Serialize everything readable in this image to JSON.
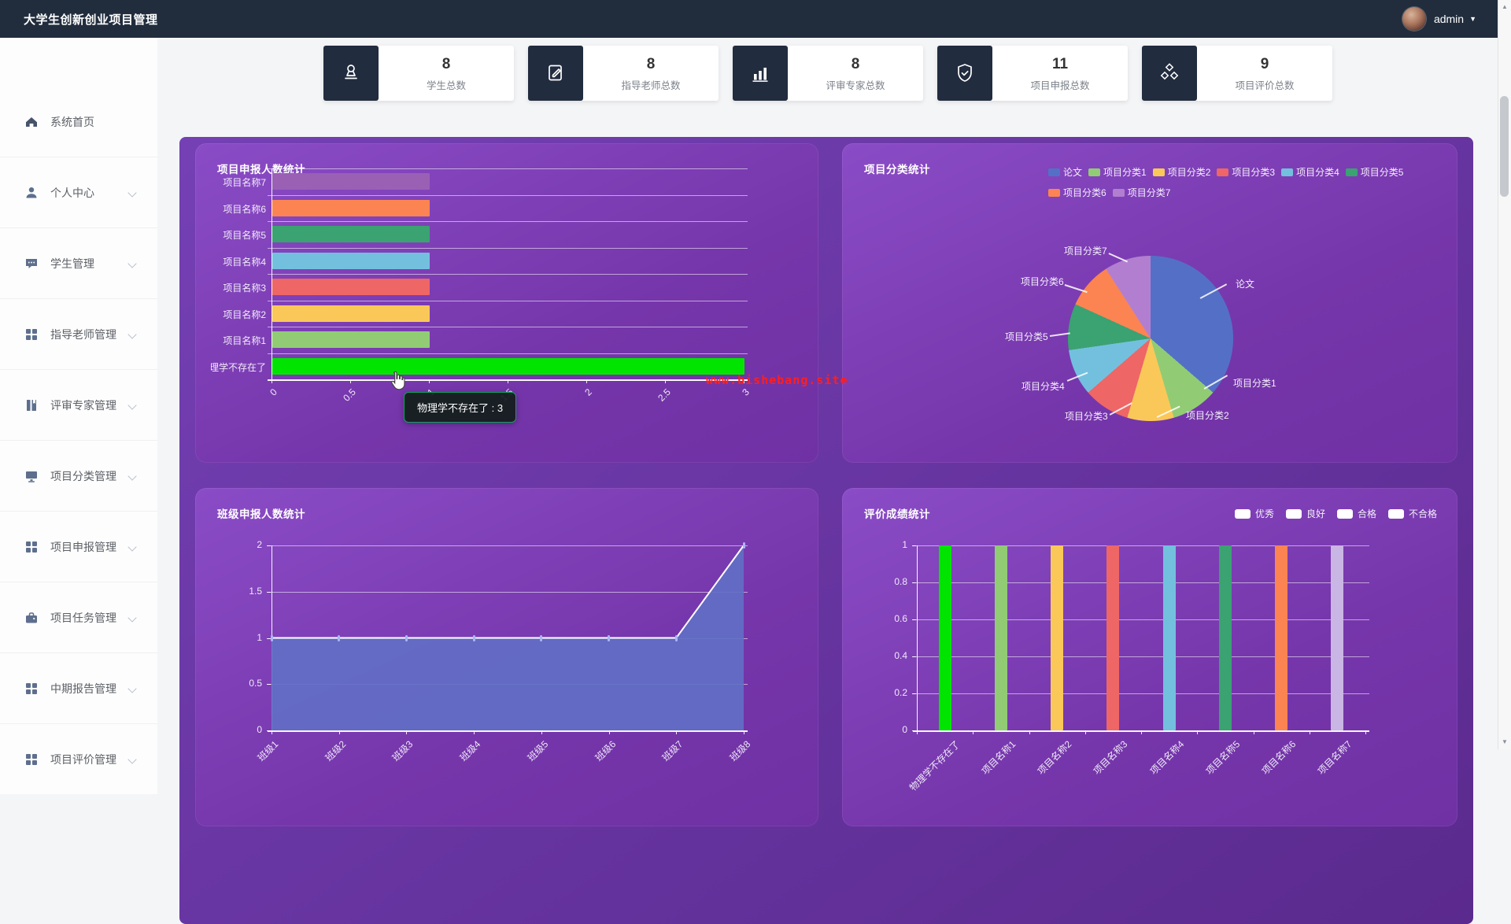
{
  "navbar": {
    "title": "大学生创新创业项目管理",
    "user": "admin"
  },
  "sidebar": {
    "items": [
      {
        "label": "系统首页",
        "icon": "home-icon",
        "expandable": false
      },
      {
        "label": "个人中心",
        "icon": "user-icon",
        "expandable": true
      },
      {
        "label": "学生管理",
        "icon": "comment-icon",
        "expandable": true
      },
      {
        "label": "指导老师管理",
        "icon": "grid-icon",
        "expandable": true
      },
      {
        "label": "评审专家管理",
        "icon": "book-icon",
        "expandable": true
      },
      {
        "label": "项目分类管理",
        "icon": "monitor-icon",
        "expandable": true
      },
      {
        "label": "项目申报管理",
        "icon": "grid-icon",
        "expandable": true
      },
      {
        "label": "项目任务管理",
        "icon": "briefcase-icon",
        "expandable": true
      },
      {
        "label": "中期报告管理",
        "icon": "grid-icon",
        "expandable": true
      },
      {
        "label": "项目评价管理",
        "icon": "grid-icon",
        "expandable": true
      }
    ]
  },
  "stats": [
    {
      "value": "8",
      "label": "学生总数",
      "icon": "stamp-icon"
    },
    {
      "value": "8",
      "label": "指导老师总数",
      "icon": "edit-icon"
    },
    {
      "value": "8",
      "label": "评审专家总数",
      "icon": "bar-chart-icon"
    },
    {
      "value": "11",
      "label": "项目申报总数",
      "icon": "shield-check-icon"
    },
    {
      "value": "9",
      "label": "项目评价总数",
      "icon": "cubes-icon"
    }
  ],
  "watermark": "www.bishebang.site",
  "colors": {
    "navbar_bg": "#212d3d",
    "panel_purple": "#7d3cb3",
    "highlight_green": "#00e400",
    "watermark_red": "#ff1e1e",
    "tooltip_border_green": "#12a05e"
  },
  "chart_data": [
    {
      "type": "bar",
      "orientation": "horizontal",
      "title": "项目申报人数统计",
      "categories": [
        "物理学不存在了",
        "项目名称1",
        "项目名称2",
        "项目名称3",
        "项目名称4",
        "项目名称5",
        "项目名称6",
        "项目名称7"
      ],
      "values": [
        3,
        1,
        1,
        1,
        1,
        1,
        1,
        1
      ],
      "colors": [
        "#00e400",
        "#91cc75",
        "#fac858",
        "#ee6666",
        "#73c0de",
        "#3ba272",
        "#fc8452",
        "#9a60b4"
      ],
      "xlim": [
        0,
        3
      ],
      "xticks": [
        "0",
        "0.5",
        "1",
        "1.5",
        "2",
        "2.5",
        "3"
      ],
      "tooltip": "物理学不存在了 : 3",
      "grid": true
    },
    {
      "type": "pie",
      "title": "项目分类统计",
      "labels": [
        "论文",
        "项目分类1",
        "项目分类2",
        "项目分类3",
        "项目分类4",
        "项目分类5",
        "项目分类6",
        "项目分类7"
      ],
      "values": [
        4,
        1,
        1,
        1,
        1,
        1,
        1,
        1
      ],
      "colors": [
        "#5470c6",
        "#91cc75",
        "#fac858",
        "#ee6666",
        "#73c0de",
        "#3ba272",
        "#fc8452",
        "#b27fd0"
      ],
      "legend_position": "top-right"
    },
    {
      "type": "area",
      "title": "班级申报人数统计",
      "categories": [
        "班级1",
        "班级2",
        "班级3",
        "班级4",
        "班级5",
        "班级6",
        "班级7",
        "班级8"
      ],
      "values": [
        1,
        1,
        1,
        1,
        1,
        1,
        1,
        2
      ],
      "ylim": [
        0,
        2
      ],
      "yticks": [
        "0",
        "0.5",
        "1",
        "1.5",
        "2"
      ],
      "fill_color": "#626fc6",
      "line_color": "#ffffff",
      "grid": true
    },
    {
      "type": "bar",
      "orientation": "vertical",
      "title": "评价成绩统计",
      "categories": [
        "物理学不存在了",
        "项目名称1",
        "项目名称2",
        "项目名称3",
        "项目名称4",
        "项目名称5",
        "项目名称6",
        "项目名称7"
      ],
      "values": [
        1,
        1,
        1,
        1,
        1,
        1,
        1,
        1
      ],
      "colors": [
        "#00e400",
        "#91cc75",
        "#fac858",
        "#ee6666",
        "#73c0de",
        "#3ba272",
        "#fc8452",
        "#c9b6e4"
      ],
      "ylim": [
        0,
        1
      ],
      "yticks": [
        "0",
        "0.2",
        "0.4",
        "0.6",
        "0.8",
        "1"
      ],
      "legend": [
        {
          "label": "优秀",
          "color": "#ffffff"
        },
        {
          "label": "良好",
          "color": "#ffffff"
        },
        {
          "label": "合格",
          "color": "#ffffff"
        },
        {
          "label": "不合格",
          "color": "#ffffff"
        }
      ],
      "grid": true
    }
  ]
}
